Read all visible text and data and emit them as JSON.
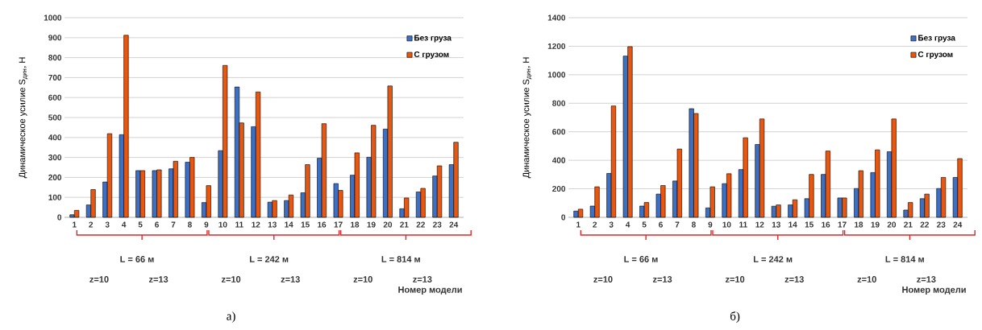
{
  "chart_data": [
    {
      "type": "bar",
      "ylabel": "Динамическое усилие S$_{дин}$, Н",
      "categories": [
        "1",
        "2",
        "3",
        "4",
        "5",
        "6",
        "7",
        "8",
        "9",
        "10",
        "11",
        "12",
        "13",
        "14",
        "15",
        "16",
        "17",
        "18",
        "19",
        "20",
        "21",
        "22",
        "23",
        "24"
      ],
      "series": [
        {
          "name": "Без груза",
          "color": "#3c70c4",
          "values": [
            13,
            62,
            177,
            414,
            234,
            234,
            243,
            276,
            74,
            334,
            653,
            454,
            76,
            84,
            123,
            296,
            169,
            211,
            301,
            442,
            43,
            127,
            207,
            264
          ]
        },
        {
          "name": "С грузом",
          "color": "#e8560f",
          "values": [
            35,
            139,
            419,
            912,
            234,
            238,
            281,
            300,
            159,
            761,
            473,
            628,
            84,
            112,
            264,
            469,
            135,
            323,
            461,
            658,
            97,
            145,
            258,
            376
          ]
        }
      ],
      "ylim": [
        0,
        1000
      ],
      "yticks": [
        0,
        100,
        200,
        300,
        400,
        500,
        600,
        700,
        800,
        900,
        1000
      ],
      "grid": "y",
      "legend": "top right",
      "annotations": [
        "L = 66 м",
        "z=10",
        "z=13",
        "L = 242 м",
        "z=10",
        "z=13",
        "L = 814 м",
        "z=10",
        "z=13",
        "Номер модели",
        "а)"
      ]
    },
    {
      "type": "bar",
      "ylabel": "Динамическое усилие S$_{дин}$, Н",
      "categories": [
        "1",
        "2",
        "3",
        "4",
        "5",
        "6",
        "7",
        "8",
        "9",
        "10",
        "11",
        "12",
        "13",
        "14",
        "15",
        "16",
        "17",
        "18",
        "19",
        "20",
        "21",
        "22",
        "23",
        "24"
      ],
      "series": [
        {
          "name": "Без груза",
          "color": "#3c70c4",
          "values": [
            44,
            79,
            308,
            1131,
            79,
            163,
            255,
            762,
            66,
            236,
            335,
            511,
            78,
            87,
            131,
            301,
            136,
            202,
            314,
            460,
            51,
            131,
            202,
            280
          ]
        },
        {
          "name": "С грузом",
          "color": "#e8560f",
          "values": [
            57,
            214,
            781,
            1197,
            104,
            223,
            479,
            728,
            214,
            306,
            558,
            690,
            87,
            123,
            301,
            465,
            136,
            327,
            473,
            690,
            104,
            163,
            280,
            412
          ]
        }
      ],
      "ylim": [
        0,
        1400
      ],
      "yticks": [
        0,
        200,
        400,
        600,
        800,
        1000,
        1200,
        1400
      ],
      "grid": "y",
      "legend": "top right",
      "annotations": [
        "L = 66 м",
        "z=10",
        "z=13",
        "L = 242 м",
        "z=10",
        "z=13",
        "L = 814 м",
        "z=10",
        "z=13",
        "Номер модели",
        "б)"
      ]
    }
  ]
}
